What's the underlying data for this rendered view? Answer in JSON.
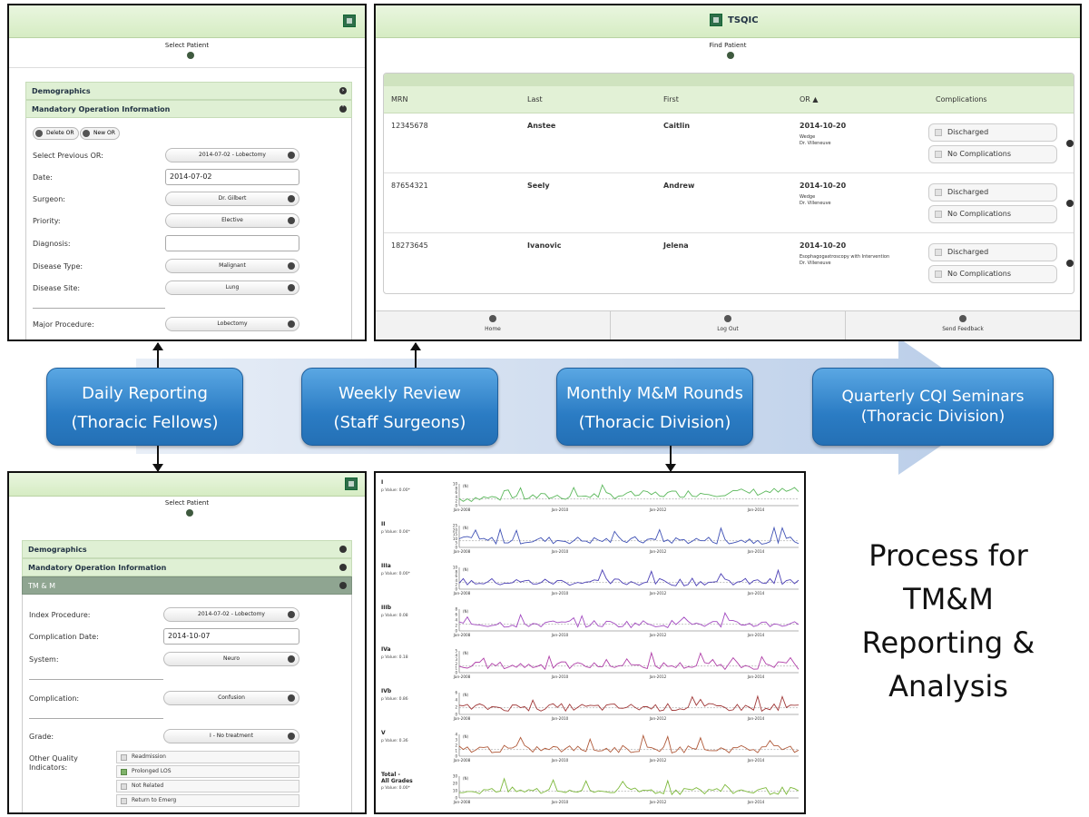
{
  "daily_panel": {
    "select_patient": "Select Patient",
    "sections": {
      "demographics": "Demographics",
      "mandatory": "Mandatory Operation Information"
    },
    "buttons": {
      "delete_or": "Delete OR",
      "new_or": "New OR"
    },
    "fields": [
      {
        "label": "Select Previous OR:",
        "value": "2014-07-02 - Lobectomy",
        "kind": "dropdown"
      },
      {
        "label": "Date:",
        "value": "2014-07-02",
        "kind": "text"
      },
      {
        "label": "Surgeon:",
        "value": "Dr. Gilbert",
        "kind": "dropdown"
      },
      {
        "label": "Priority:",
        "value": "Elective",
        "kind": "dropdown"
      },
      {
        "label": "Diagnosis:",
        "value": "",
        "kind": "text"
      },
      {
        "label": "Disease Type:",
        "value": "Malignant",
        "kind": "dropdown"
      },
      {
        "label": "Disease Site:",
        "value": "Lung",
        "kind": "dropdown"
      },
      {
        "label": "Major Procedure:",
        "value": "Lobectomy",
        "kind": "dropdown"
      }
    ]
  },
  "weekly_panel": {
    "app_title": "TSQIC",
    "find_patient": "Find Patient",
    "columns": [
      "MRN",
      "Last",
      "First",
      "OR ▲",
      "Complications"
    ],
    "rows": [
      {
        "mrn": "12345678",
        "last": "Anstee",
        "first": "Caitlin",
        "or_date": "2014-10-20",
        "procedure": "Wedge",
        "surgeon": "Dr. Villeneuve"
      },
      {
        "mrn": "87654321",
        "last": "Seely",
        "first": "Andrew",
        "or_date": "2014-10-20",
        "procedure": "Wedge",
        "surgeon": "Dr. Villeneuve"
      },
      {
        "mrn": "18273645",
        "last": "Ivanovic",
        "first": "Jelena",
        "or_date": "2014-10-20",
        "procedure": "Esophagogastroscopy with Intervention",
        "surgeon": "Dr. Villeneuve"
      }
    ],
    "discharged": "Discharged",
    "no_complications": "No Complications",
    "footer": [
      "Home",
      "Log Out",
      "Send Feedback"
    ]
  },
  "tmm_panel": {
    "select_patient": "Select Patient",
    "sections": {
      "demographics": "Demographics",
      "mandatory": "Mandatory Operation Information",
      "tmm": "TM & M"
    },
    "fields": [
      {
        "label": "Index Procedure:",
        "value": "2014-07-02 - Lobectomy",
        "kind": "dropdown"
      },
      {
        "label": "Complication Date:",
        "value": "2014-10-07",
        "kind": "text"
      },
      {
        "label": "System:",
        "value": "Neuro",
        "kind": "dropdown"
      },
      {
        "label": "Complication:",
        "value": "Confusion",
        "kind": "dropdown"
      },
      {
        "label": "Grade:",
        "value": "I - No treatment",
        "kind": "dropdown"
      }
    ],
    "other_label": "Other Quality Indicators:",
    "indicators": [
      {
        "label": "Readmission",
        "checked": false
      },
      {
        "label": "Prolonged LOS",
        "checked": true
      },
      {
        "label": "Not Related",
        "checked": false
      },
      {
        "label": "Return to Emerg",
        "checked": false
      }
    ]
  },
  "charts_panel": {
    "x_ticks": [
      "Jan-2008",
      "Jan-2010",
      "Jan-2012",
      "Jan-2014"
    ],
    "y_axis_label": "(N)",
    "charts": [
      {
        "grade": "I",
        "pvalue": "p Value: 0.00*",
        "color": "#5cb85c",
        "ymax": 10,
        "yticks": [
          "10",
          "8",
          "6",
          "4",
          "2",
          "0"
        ]
      },
      {
        "grade": "II",
        "pvalue": "p Value: 0.04*",
        "color": "#3f51b5",
        "ymax": 25,
        "yticks": [
          "25",
          "20",
          "15",
          "10",
          "5",
          "0"
        ]
      },
      {
        "grade": "IIIa",
        "pvalue": "p Value: 0.00*",
        "color": "#4b3fb5",
        "ymax": 10,
        "yticks": [
          "10",
          "8",
          "6",
          "4",
          "2",
          "0"
        ]
      },
      {
        "grade": "IIIb",
        "pvalue": "p Value: 0.08",
        "color": "#a24ac0",
        "ymax": 8,
        "yticks": [
          "8",
          "6",
          "4",
          "2",
          "0"
        ]
      },
      {
        "grade": "IVa",
        "pvalue": "p Value: 0.18",
        "color": "#b03fa8",
        "ymax": 5,
        "yticks": [
          "5",
          "4",
          "3",
          "2",
          "1",
          "0"
        ]
      },
      {
        "grade": "IVb",
        "pvalue": "p Value: 0.86",
        "color": "#a03838",
        "ymax": 6,
        "yticks": [
          "6",
          "4",
          "2",
          "0"
        ]
      },
      {
        "grade": "V",
        "pvalue": "p Value: 0.36",
        "color": "#b05a3a",
        "ymax": 4,
        "yticks": [
          "4",
          "3",
          "2",
          "1",
          "0"
        ]
      },
      {
        "grade": "Total - All Grades",
        "pvalue": "p Value: 0.00*",
        "color": "#7cb83a",
        "ymax": 30,
        "yticks": [
          "30",
          "20",
          "10",
          "0"
        ]
      }
    ]
  },
  "process_steps": [
    {
      "line1": "Daily Reporting",
      "line2": "(Thoracic Fellows)"
    },
    {
      "line1": "Weekly Review",
      "line2": "(Staff Surgeons)"
    },
    {
      "line1": "Monthly M&M Rounds",
      "line2": "(Thoracic Division)"
    },
    {
      "line1": "Quarterly CQI Seminars",
      "line2": "(Thoracic Division)"
    }
  ],
  "caption": [
    "Process for",
    "TM&M",
    "Reporting &",
    "Analysis"
  ]
}
